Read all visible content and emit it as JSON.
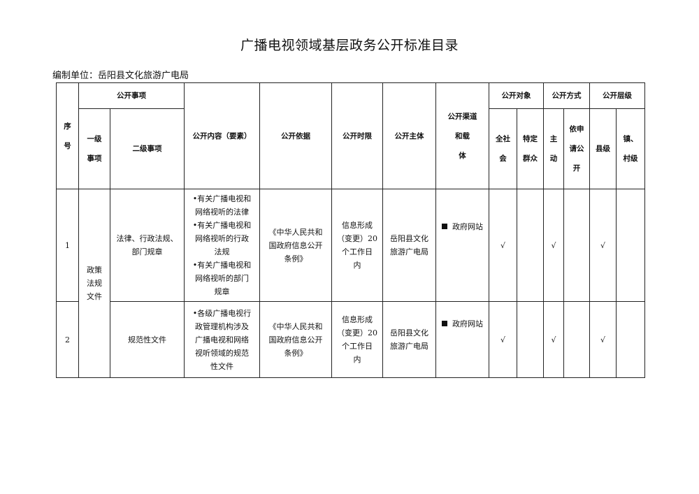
{
  "title": "广播电视领域基层政务公开标准目录",
  "compiler": "编制单位：岳阳县文化旅游广电局",
  "header": {
    "seq": [
      "序",
      "号"
    ],
    "matters": "公开事项",
    "level1": [
      "一级",
      "事项"
    ],
    "level2": "二级事项",
    "content": "公开内容（要素）",
    "basis": "公开依据",
    "time_limit": "公开时限",
    "subject": "公开主体",
    "channel": [
      "公开渠道",
      "和载",
      "体"
    ],
    "target": "公开对象",
    "target_all": [
      "全社",
      "会"
    ],
    "target_specific": [
      "特定",
      "群众"
    ],
    "method": "公开方式",
    "method_active": [
      "主",
      "动"
    ],
    "method_apply": [
      "依申",
      "请公",
      "开"
    ],
    "level": "公开层级",
    "level_county": "县级",
    "level_town": [
      "镇、",
      "村级"
    ]
  },
  "level1_group": [
    "政策",
    "法规",
    "文件"
  ],
  "rows": [
    {
      "seq": "1",
      "level2": [
        "法律、行政法规、",
        "部门规章"
      ],
      "content": [
        "•有关广播电视和",
        "网络视听的法律",
        "•有关广播电视和",
        "网络视听的行政",
        "法规",
        "•有关广播电视和",
        "网络视听的部门",
        "规章"
      ],
      "basis": [
        "《中华人民共和",
        "国政府信息公开",
        "条例》"
      ],
      "time_limit": [
        "信息形成",
        "（变更）20",
        "个工作日",
        "内"
      ],
      "subject": [
        "岳阳县文化",
        "旅游广电局"
      ],
      "channel": "政府网站",
      "target_all": "√",
      "target_specific": "",
      "method_active": "√",
      "method_apply": "",
      "level_county": "√",
      "level_town": ""
    },
    {
      "seq": "2",
      "level2": [
        "规范性文件"
      ],
      "content": [
        "•各级广播电视行",
        "政管理机构涉及",
        "广播电视和网络",
        "视听领域的规范",
        "性文件"
      ],
      "basis": [
        "《中华人民共和",
        "国政府信息公开",
        "条例》"
      ],
      "time_limit": [
        "信息形成",
        "（变更）20",
        "个工作日",
        "内"
      ],
      "subject": [
        "岳阳县文化",
        "旅游广电局"
      ],
      "channel": "政府网站",
      "target_all": "√",
      "target_specific": "",
      "method_active": "√",
      "method_apply": "",
      "level_county": "√",
      "level_town": ""
    }
  ]
}
